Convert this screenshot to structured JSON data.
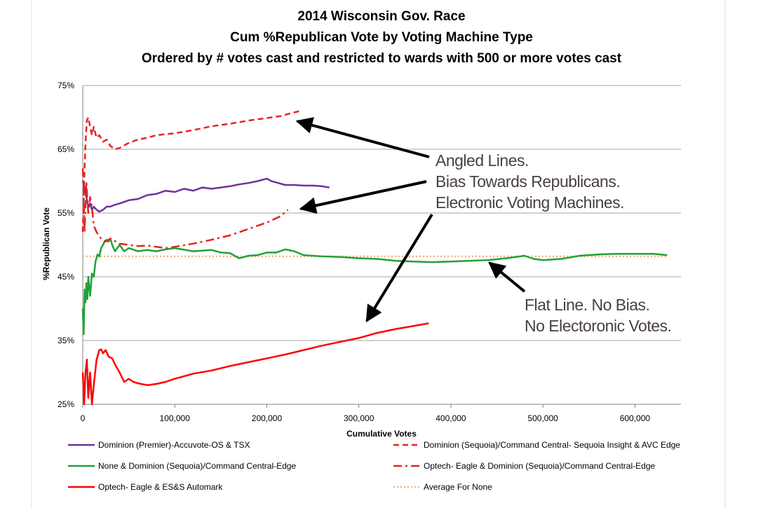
{
  "chart_data": {
    "type": "line",
    "title_lines": [
      "2014 Wisconsin Gov. Race",
      "Cum %Republican Vote by Voting Machine Type",
      "Ordered by # votes cast and restricted to wards with 500 or more votes cast"
    ],
    "xlabel": "Cumulative Votes",
    "ylabel": "%Republican Vote",
    "xlim": [
      0,
      650000
    ],
    "ylim": [
      0.25,
      0.75
    ],
    "x_ticks": [
      {
        "value": 0,
        "label": "0"
      },
      {
        "value": 100000,
        "label": "100,000"
      },
      {
        "value": 200000,
        "label": "200,000"
      },
      {
        "value": 300000,
        "label": "300,000"
      },
      {
        "value": 400000,
        "label": "400,000"
      },
      {
        "value": 500000,
        "label": "500,000"
      },
      {
        "value": 600000,
        "label": "600,000"
      }
    ],
    "y_ticks": [
      {
        "value": 0.25,
        "label": "25%"
      },
      {
        "value": 0.35,
        "label": "35%"
      },
      {
        "value": 0.45,
        "label": "45%"
      },
      {
        "value": 0.55,
        "label": "55%"
      },
      {
        "value": 0.65,
        "label": "65%"
      },
      {
        "value": 0.75,
        "label": "75%"
      }
    ],
    "grid": "horizontal",
    "legend_position": "bottom",
    "series": [
      {
        "name": "Dominion (Premier)-Accuvote-OS & TSX",
        "color": "#7030a0",
        "style": "solid",
        "legend_col": 0,
        "legend_row": 0,
        "points": [
          [
            0,
            0.6
          ],
          [
            2000,
            0.59
          ],
          [
            4000,
            0.575
          ],
          [
            6000,
            0.56
          ],
          [
            8000,
            0.565
          ],
          [
            10000,
            0.555
          ],
          [
            12000,
            0.56
          ],
          [
            15000,
            0.555
          ],
          [
            18000,
            0.552
          ],
          [
            22000,
            0.555
          ],
          [
            26000,
            0.56
          ],
          [
            30000,
            0.56
          ],
          [
            35000,
            0.563
          ],
          [
            40000,
            0.565
          ],
          [
            50000,
            0.57
          ],
          [
            60000,
            0.572
          ],
          [
            70000,
            0.578
          ],
          [
            80000,
            0.58
          ],
          [
            90000,
            0.585
          ],
          [
            100000,
            0.583
          ],
          [
            110000,
            0.588
          ],
          [
            120000,
            0.585
          ],
          [
            130000,
            0.59
          ],
          [
            140000,
            0.588
          ],
          [
            150000,
            0.59
          ],
          [
            160000,
            0.592
          ],
          [
            170000,
            0.595
          ],
          [
            180000,
            0.597
          ],
          [
            190000,
            0.6
          ],
          [
            200000,
            0.604
          ],
          [
            205000,
            0.6
          ],
          [
            210000,
            0.598
          ],
          [
            220000,
            0.594
          ],
          [
            230000,
            0.594
          ],
          [
            240000,
            0.593
          ],
          [
            250000,
            0.593
          ],
          [
            260000,
            0.592
          ],
          [
            268000,
            0.59
          ]
        ]
      },
      {
        "name": "Dominion (Sequoia)/Command Central- Sequoia Insight & AVC Edge",
        "color": "#e52420",
        "style": "dashed",
        "legend_col": 1,
        "legend_row": 0,
        "points": [
          [
            0,
            0.52
          ],
          [
            1500,
            0.6
          ],
          [
            3000,
            0.66
          ],
          [
            4500,
            0.695
          ],
          [
            6000,
            0.7
          ],
          [
            8000,
            0.685
          ],
          [
            10000,
            0.672
          ],
          [
            12000,
            0.685
          ],
          [
            15000,
            0.668
          ],
          [
            18000,
            0.672
          ],
          [
            22000,
            0.662
          ],
          [
            26000,
            0.665
          ],
          [
            30000,
            0.655
          ],
          [
            35000,
            0.65
          ],
          [
            40000,
            0.652
          ],
          [
            50000,
            0.66
          ],
          [
            60000,
            0.665
          ],
          [
            70000,
            0.668
          ],
          [
            80000,
            0.672
          ],
          [
            100000,
            0.675
          ],
          [
            120000,
            0.68
          ],
          [
            140000,
            0.686
          ],
          [
            160000,
            0.69
          ],
          [
            180000,
            0.695
          ],
          [
            200000,
            0.699
          ],
          [
            215000,
            0.702
          ],
          [
            225000,
            0.706
          ],
          [
            236000,
            0.71
          ]
        ]
      },
      {
        "name": "None  & Dominion (Sequoia)/Command Central-Edge",
        "color": "#21a138",
        "style": "solid",
        "legend_col": 0,
        "legend_row": 1,
        "points": [
          [
            0,
            0.4
          ],
          [
            1000,
            0.36
          ],
          [
            2000,
            0.43
          ],
          [
            3000,
            0.41
          ],
          [
            4000,
            0.44
          ],
          [
            5000,
            0.415
          ],
          [
            6000,
            0.45
          ],
          [
            8000,
            0.42
          ],
          [
            10000,
            0.455
          ],
          [
            12000,
            0.45
          ],
          [
            14000,
            0.475
          ],
          [
            16000,
            0.485
          ],
          [
            18000,
            0.482
          ],
          [
            20000,
            0.495
          ],
          [
            22000,
            0.5
          ],
          [
            24000,
            0.506
          ],
          [
            26000,
            0.508
          ],
          [
            28000,
            0.505
          ],
          [
            30000,
            0.51
          ],
          [
            32000,
            0.5
          ],
          [
            35000,
            0.49
          ],
          [
            40000,
            0.5
          ],
          [
            45000,
            0.49
          ],
          [
            50000,
            0.495
          ],
          [
            60000,
            0.49
          ],
          [
            70000,
            0.492
          ],
          [
            80000,
            0.49
          ],
          [
            90000,
            0.493
          ],
          [
            100000,
            0.495
          ],
          [
            120000,
            0.49
          ],
          [
            140000,
            0.492
          ],
          [
            150000,
            0.488
          ],
          [
            160000,
            0.487
          ],
          [
            170000,
            0.479
          ],
          [
            180000,
            0.483
          ],
          [
            190000,
            0.484
          ],
          [
            200000,
            0.488
          ],
          [
            210000,
            0.488
          ],
          [
            220000,
            0.493
          ],
          [
            230000,
            0.49
          ],
          [
            240000,
            0.484
          ],
          [
            260000,
            0.482
          ],
          [
            280000,
            0.481
          ],
          [
            300000,
            0.479
          ],
          [
            320000,
            0.478
          ],
          [
            340000,
            0.475
          ],
          [
            360000,
            0.474
          ],
          [
            380000,
            0.473
          ],
          [
            400000,
            0.474
          ],
          [
            420000,
            0.475
          ],
          [
            440000,
            0.476
          ],
          [
            460000,
            0.479
          ],
          [
            480000,
            0.483
          ],
          [
            490000,
            0.478
          ],
          [
            500000,
            0.476
          ],
          [
            520000,
            0.478
          ],
          [
            540000,
            0.483
          ],
          [
            560000,
            0.485
          ],
          [
            580000,
            0.486
          ],
          [
            600000,
            0.486
          ],
          [
            620000,
            0.486
          ],
          [
            635000,
            0.484
          ]
        ]
      },
      {
        "name": "Optech- Eagle & Dominion (Sequoia)/Command Central-Edge",
        "color": "#e52420",
        "style": "dashdot",
        "legend_col": 1,
        "legend_row": 1,
        "points": [
          [
            0,
            0.62
          ],
          [
            1000,
            0.58
          ],
          [
            2000,
            0.52
          ],
          [
            3000,
            0.56
          ],
          [
            4000,
            0.6
          ],
          [
            5000,
            0.57
          ],
          [
            6000,
            0.55
          ],
          [
            8000,
            0.575
          ],
          [
            10000,
            0.56
          ],
          [
            12000,
            0.53
          ],
          [
            15000,
            0.52
          ],
          [
            20000,
            0.51
          ],
          [
            25000,
            0.505
          ],
          [
            30000,
            0.51
          ],
          [
            40000,
            0.502
          ],
          [
            50000,
            0.5
          ],
          [
            60000,
            0.498
          ],
          [
            70000,
            0.499
          ],
          [
            80000,
            0.497
          ],
          [
            90000,
            0.495
          ],
          [
            100000,
            0.497
          ],
          [
            120000,
            0.502
          ],
          [
            140000,
            0.508
          ],
          [
            160000,
            0.515
          ],
          [
            180000,
            0.525
          ],
          [
            200000,
            0.535
          ],
          [
            215000,
            0.545
          ],
          [
            223000,
            0.555
          ]
        ]
      },
      {
        "name": "Optech- Eagle & ES&S Automark",
        "color": "#ff0000",
        "style": "solid",
        "legend_col": 0,
        "legend_row": 2,
        "points": [
          [
            0,
            0.3
          ],
          [
            1500,
            0.25
          ],
          [
            3000,
            0.3
          ],
          [
            4500,
            0.32
          ],
          [
            6000,
            0.26
          ],
          [
            8000,
            0.3
          ],
          [
            10000,
            0.25
          ],
          [
            12000,
            0.28
          ],
          [
            15000,
            0.32
          ],
          [
            18000,
            0.335
          ],
          [
            20000,
            0.336
          ],
          [
            22000,
            0.33
          ],
          [
            25000,
            0.335
          ],
          [
            28000,
            0.325
          ],
          [
            32000,
            0.322
          ],
          [
            36000,
            0.31
          ],
          [
            40000,
            0.3
          ],
          [
            45000,
            0.285
          ],
          [
            50000,
            0.29
          ],
          [
            55000,
            0.285
          ],
          [
            60000,
            0.283
          ],
          [
            70000,
            0.28
          ],
          [
            80000,
            0.282
          ],
          [
            90000,
            0.285
          ],
          [
            100000,
            0.29
          ],
          [
            120000,
            0.298
          ],
          [
            140000,
            0.303
          ],
          [
            160000,
            0.31
          ],
          [
            180000,
            0.316
          ],
          [
            200000,
            0.322
          ],
          [
            220000,
            0.328
          ],
          [
            240000,
            0.335
          ],
          [
            260000,
            0.342
          ],
          [
            280000,
            0.348
          ],
          [
            300000,
            0.354
          ],
          [
            320000,
            0.362
          ],
          [
            340000,
            0.368
          ],
          [
            360000,
            0.373
          ],
          [
            376000,
            0.377
          ]
        ]
      },
      {
        "name": "Average For None",
        "color": "#f4b183",
        "style": "dotted",
        "legend_col": 1,
        "legend_row": 2,
        "points": [
          [
            0,
            0.482
          ],
          [
            635000,
            0.482
          ]
        ]
      }
    ],
    "annotations": [
      {
        "name": "angled-lines",
        "lines": [
          "Angled Lines.",
          "Bias Towards Republicans.",
          "Electronic Voting Machines."
        ]
      },
      {
        "name": "flat-line",
        "lines": [
          "Flat Line. No Bias.",
          "No Electoronic Votes."
        ]
      }
    ]
  }
}
